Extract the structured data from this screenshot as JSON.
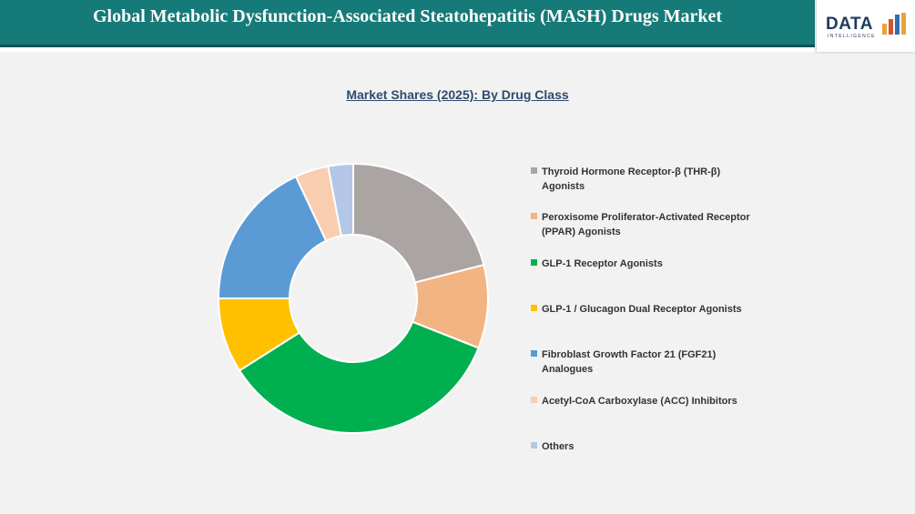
{
  "header": {
    "title": "Global Metabolic Dysfunction-Associated Steatohepatitis (MASH) Drugs Market",
    "logo_text": "DATA",
    "logo_subtext": "INTELLIGENCE"
  },
  "colors": {
    "header_bg": "#167a78",
    "logo_bars": [
      "#e8a43a",
      "#d8532f",
      "#2e6fb0",
      "#e8a43a"
    ]
  },
  "chart_data": {
    "type": "pie",
    "style": "donut",
    "title": "Market Shares (2025): By Drug Class",
    "legend_position": "right",
    "series": [
      {
        "name": "Thyroid Hormone Receptor-β (THR-β) Agonists",
        "value": 21,
        "color": "#aaa5a2"
      },
      {
        "name": "Peroxisome Proliferator-Activated Receptor (PPAR) Agonists",
        "value": 10,
        "color": "#f3b483"
      },
      {
        "name": "GLP-1 Receptor Agonists",
        "value": 35,
        "color": "#00b050"
      },
      {
        "name": "GLP-1 / Glucagon Dual Receptor Agonists",
        "value": 9,
        "color": "#ffc000"
      },
      {
        "name": "Fibroblast Growth Factor 21 (FGF21) Analogues",
        "value": 18,
        "color": "#5b9bd5"
      },
      {
        "name": "Acetyl-CoA Carboxylase (ACC) Inhibitors",
        "value": 4,
        "color": "#f9cdb0"
      },
      {
        "name": "Others",
        "value": 3,
        "color": "#b4c7e7"
      }
    ]
  }
}
